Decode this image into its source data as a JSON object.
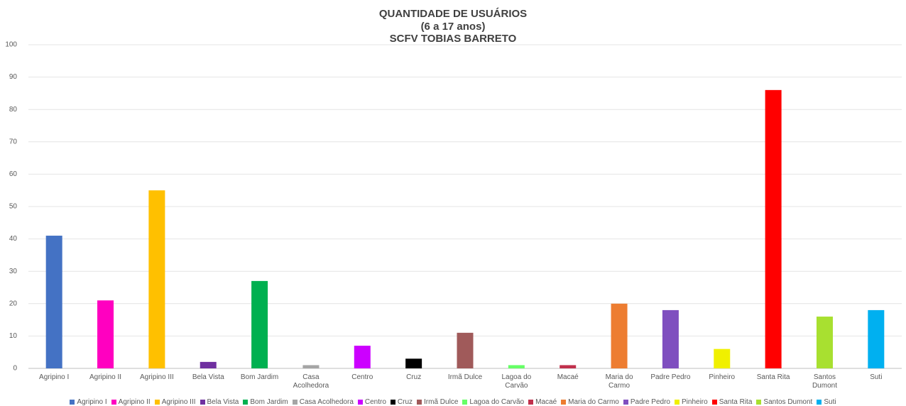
{
  "chart_data": {
    "type": "bar",
    "title": [
      "QUANTIDADE DE USUÁRIOS",
      "(6 a 17 anos)",
      "SCFV TOBIAS BARRETO"
    ],
    "categories": [
      "Agripino I",
      "Agripino II",
      "Agripino III",
      "Bela Vista",
      "Bom Jardim",
      "Casa Acolhedora",
      "Centro",
      "Cruz",
      "Irmã Dulce",
      "Lagoa do Carvão",
      "Macaé",
      "Maria do Carmo",
      "Padre Pedro",
      "Pinheiro",
      "Santa Rita",
      "Santos Dumont",
      "Suti"
    ],
    "values": [
      41,
      21,
      55,
      2,
      27,
      1,
      7,
      3,
      11,
      1,
      1,
      20,
      18,
      6,
      86,
      16,
      18
    ],
    "colors": [
      "#4472c4",
      "#ff00c0",
      "#ffc000",
      "#7030a0",
      "#00b050",
      "#a5a5a5",
      "#cc00ff",
      "#000000",
      "#a05a5a",
      "#66ff66",
      "#c0304c",
      "#ed7d31",
      "#7f4fbf",
      "#f0f000",
      "#ff0000",
      "#a8e030",
      "#00b0f0"
    ],
    "ylim": [
      0,
      100
    ],
    "yticks": [
      0,
      10,
      20,
      30,
      40,
      50,
      60,
      70,
      80,
      90,
      100
    ],
    "grid": true,
    "legend": "bottom"
  }
}
